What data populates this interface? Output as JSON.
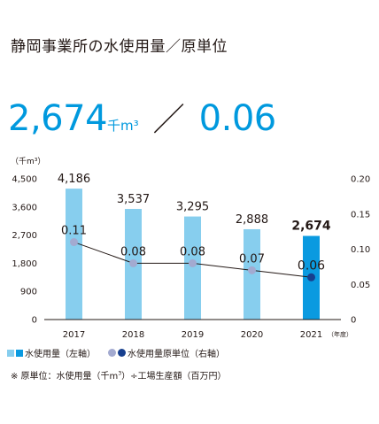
{
  "title": "静岡事業所の水使用量／原単位",
  "headline": {
    "value": "2,674",
    "unit": "千m³",
    "separator": "／",
    "ratio": "0.06"
  },
  "chart_data": {
    "type": "bar",
    "categories": [
      "2017",
      "2018",
      "2019",
      "2020",
      "2021"
    ],
    "x_unit_label": "（年度）",
    "series": [
      {
        "name": "水使用量（左軸）",
        "type": "bar",
        "axis": "left",
        "values": [
          4186,
          3537,
          3295,
          2888,
          2674
        ],
        "labels": [
          "4,186",
          "3,537",
          "3,295",
          "2,888",
          "2,674"
        ]
      },
      {
        "name": "水使用量原単位（右軸）",
        "type": "line",
        "axis": "right",
        "values": [
          0.11,
          0.08,
          0.08,
          0.07,
          0.06
        ],
        "labels": [
          "0.11",
          "0.08",
          "0.08",
          "0.07",
          "0.06"
        ]
      }
    ],
    "y_left": {
      "unit": "（千m³）",
      "ylim": [
        0,
        4500
      ],
      "ticks": [
        0,
        900,
        1800,
        2700,
        3600,
        4500
      ],
      "tick_labels": [
        "0",
        "900",
        "1,800",
        "2,700",
        "3,600",
        "4,500"
      ]
    },
    "y_right": {
      "ylim": [
        0,
        0.2
      ],
      "ticks": [
        0,
        0.05,
        0.1,
        0.15,
        0.2
      ],
      "tick_labels": [
        "0",
        "0.05",
        "0.10",
        "0.15",
        "0.20"
      ]
    },
    "colors": {
      "bar": "#87ceee",
      "bar_highlight": "#0a9ae0",
      "dot": "#a3aad0",
      "dot_highlight": "#173f8e",
      "line": "#231815"
    }
  },
  "legend": {
    "bar_label": "水使用量（左軸）",
    "line_label": "水使用量原単位（右軸）"
  },
  "note": {
    "prefix": "※ 原単位：水使用量（千m",
    "sup": "3",
    "suffix": "）÷工場生産額（百万円）"
  }
}
